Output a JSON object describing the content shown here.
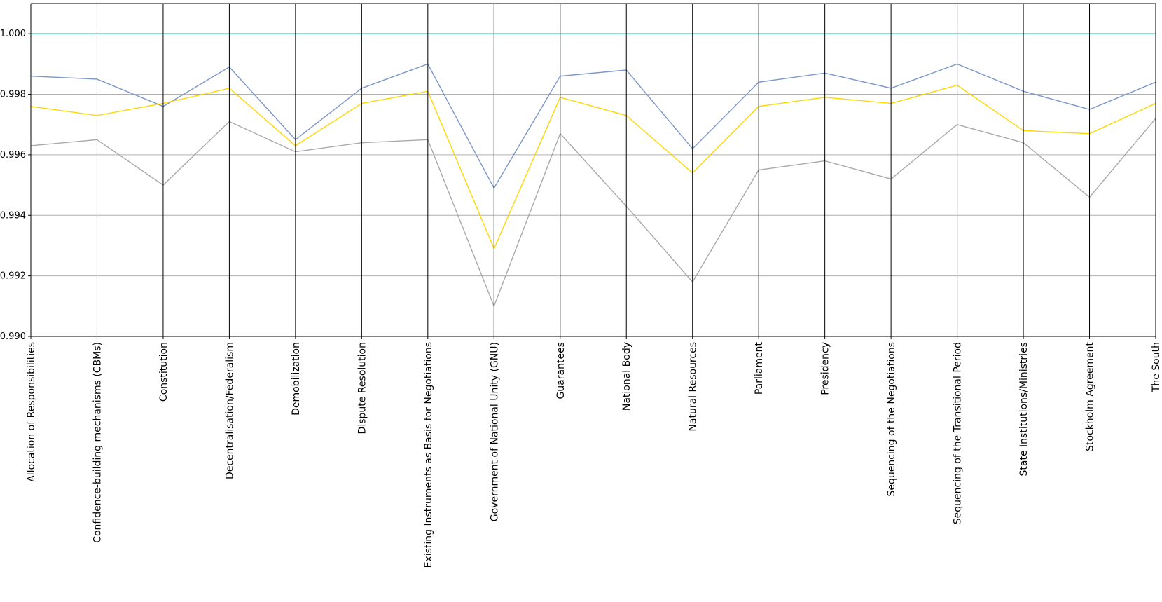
{
  "chart_data": {
    "type": "line",
    "title": "",
    "xlabel": "",
    "ylabel": "",
    "ylim": [
      0.99,
      1.001
    ],
    "yticks": [
      "0.990",
      "0.992",
      "0.994",
      "0.996",
      "0.998",
      "1.000"
    ],
    "ytick_values": [
      0.99,
      0.992,
      0.994,
      0.996,
      0.998,
      1.0
    ],
    "grid": "horizontal",
    "legend": "none",
    "categories": [
      "Allocation of Responsibilities",
      "Confidence-building mechanisms (CBMs)",
      "Constitution",
      "Decentralisation/Federalism",
      "Demobilization",
      "Dispute Resolution",
      "Existing Instruments as Basis for Negotiations",
      "Government of National Unity (GNU)",
      "Guarantees",
      "National Body",
      "Natural Resources",
      "Parliament",
      "Presidency",
      "Sequencing of the Negotiations",
      "Sequencing of the Transitional Period",
      "State Institutions/Ministries",
      "Stockholm Agreement",
      "The South"
    ],
    "series": [
      {
        "color": "#3cb391",
        "values": [
          1.0,
          1.0,
          1.0,
          1.0,
          1.0,
          1.0,
          1.0,
          1.0,
          1.0,
          1.0,
          1.0,
          1.0,
          1.0,
          1.0,
          1.0,
          1.0,
          1.0,
          1.0
        ]
      },
      {
        "color": "#7b96c8",
        "values": [
          0.9986,
          0.9985,
          0.9976,
          0.9989,
          0.9965,
          0.9982,
          0.999,
          0.9949,
          0.9986,
          0.9988,
          0.9962,
          0.9984,
          0.9987,
          0.9982,
          0.999,
          0.9981,
          0.9975,
          0.9984
        ]
      },
      {
        "color": "#ffd700",
        "values": [
          0.9976,
          0.9973,
          0.9977,
          0.9982,
          0.9963,
          0.9977,
          0.9981,
          0.9929,
          0.9979,
          0.9973,
          0.9954,
          0.9976,
          0.9979,
          0.9977,
          0.9983,
          0.9968,
          0.9967,
          0.9977
        ]
      },
      {
        "color": "#a9a9a9",
        "values": [
          0.9963,
          0.9965,
          0.995,
          0.9971,
          0.9961,
          0.9964,
          0.9965,
          0.991,
          0.9967,
          0.9943,
          0.9918,
          0.9955,
          0.9958,
          0.9952,
          0.997,
          0.9964,
          0.9946,
          0.9972
        ]
      }
    ]
  }
}
